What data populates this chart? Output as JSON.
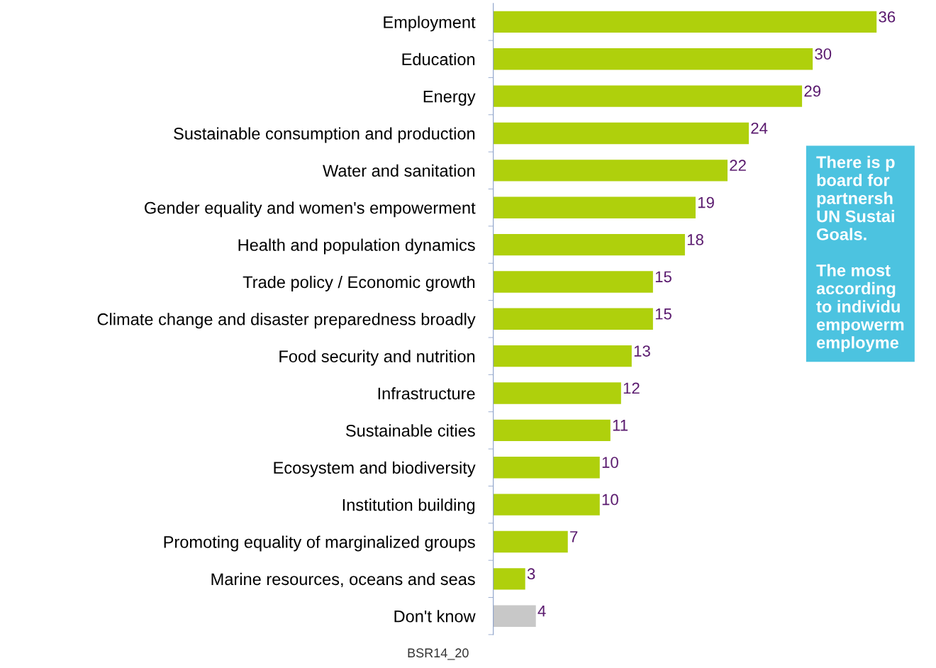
{
  "chart_data": {
    "type": "bar",
    "orientation": "horizontal",
    "data_labels": true,
    "grid": false,
    "legend": false,
    "categories": [
      "Employment",
      "Education",
      "Energy",
      "Sustainable consumption and production",
      "Water and sanitation",
      "Gender equality and women's empowerment",
      "Health and population dynamics",
      "Trade policy / Economic growth",
      "Climate change and disaster preparedness broadly",
      "Food security and nutrition",
      "Infrastructure",
      "Sustainable cities",
      "Ecosystem and biodiversity",
      "Institution building",
      "Promoting equality of marginalized groups",
      "Marine resources, oceans and seas",
      "Don't know"
    ],
    "values": [
      36,
      30,
      29,
      24,
      22,
      19,
      18,
      15,
      15,
      13,
      12,
      11,
      10,
      10,
      7,
      3,
      4
    ],
    "colors": [
      "#afd00c",
      "#afd00c",
      "#afd00c",
      "#afd00c",
      "#afd00c",
      "#afd00c",
      "#afd00c",
      "#afd00c",
      "#afd00c",
      "#afd00c",
      "#afd00c",
      "#afd00c",
      "#afd00c",
      "#afd00c",
      "#afd00c",
      "#afd00c",
      "#c8c8c8"
    ],
    "tick_labels": "y",
    "annotations": [
      "There is p\nboard for\npartnersh\nUN Sustai\nGoals.\n\nThe most\naccording\nto individu\nempowerm\nemployme",
      "BSR14_20"
    ]
  }
}
